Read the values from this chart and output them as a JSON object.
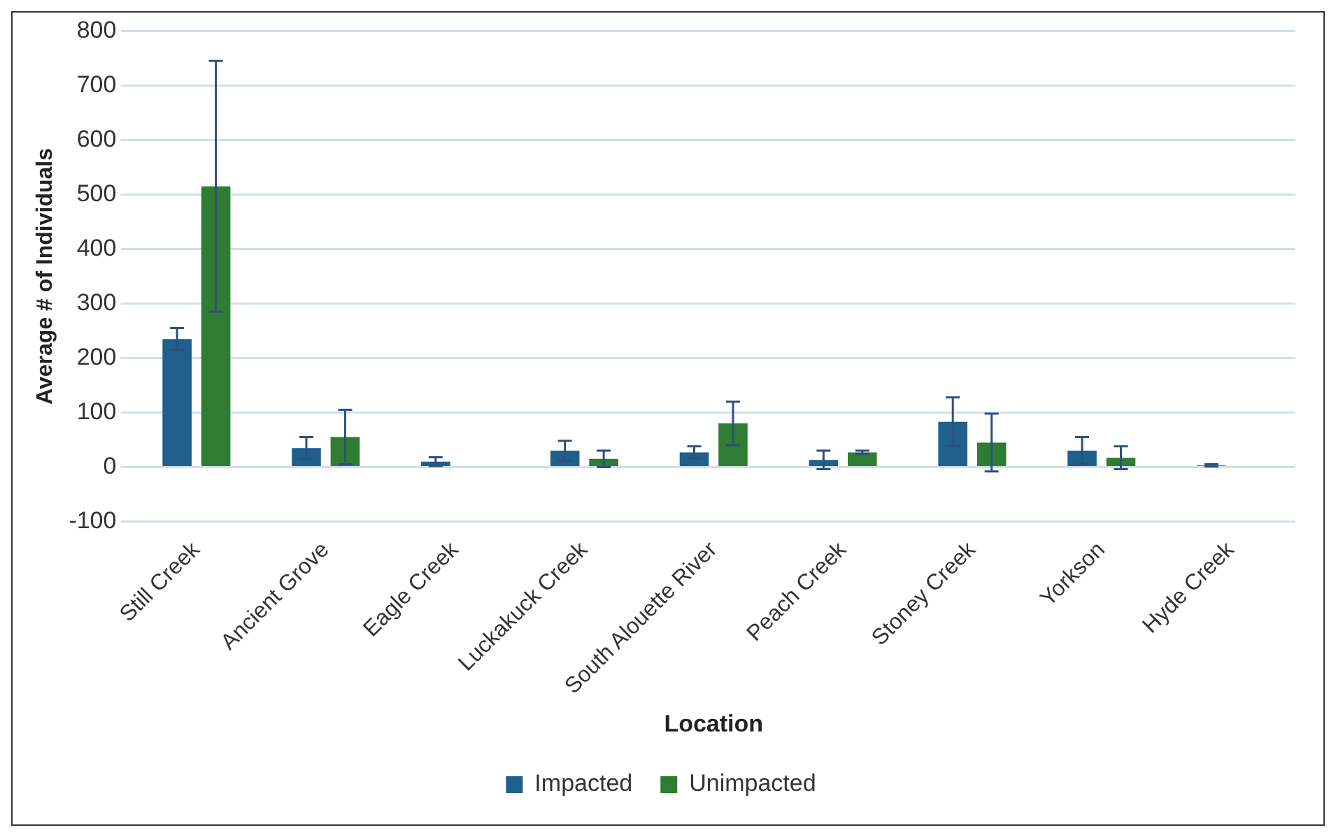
{
  "chart_data": {
    "type": "bar",
    "xlabel": "Location",
    "ylabel": "Average # of Individuals",
    "categories": [
      "Still Creek",
      "Ancient Grove",
      "Eagle Creek",
      "Luckakuck Creek",
      "South Alouette River",
      "Peach Creek",
      "Stoney Creek",
      "Yorkson",
      "Hyde Creek"
    ],
    "series": [
      {
        "name": "Impacted",
        "color": "#1f5f8b",
        "values": [
          235,
          35,
          10,
          30,
          27,
          13,
          83,
          30,
          3
        ],
        "errors": [
          20,
          20,
          8,
          18,
          11,
          17,
          45,
          25,
          2
        ]
      },
      {
        "name": "Unimpacted",
        "color": "#2e7d32",
        "values": [
          515,
          55,
          null,
          15,
          80,
          27,
          45,
          17,
          null
        ],
        "errors": [
          230,
          50,
          null,
          15,
          40,
          3,
          53,
          21,
          null
        ]
      }
    ],
    "ylim": [
      -100,
      800
    ],
    "yticks": [
      -100,
      0,
      100,
      200,
      300,
      400,
      500,
      600,
      700,
      800
    ],
    "grid": "y",
    "legend": "bottom"
  }
}
